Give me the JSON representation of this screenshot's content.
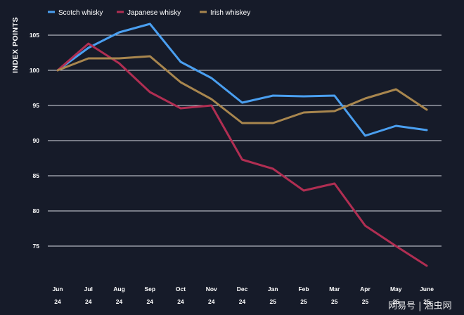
{
  "chart_data": {
    "type": "line",
    "ylabel": "INDEX POINTS",
    "ylim": [
      70,
      108
    ],
    "yticks": [
      75,
      80,
      85,
      90,
      95,
      100,
      105
    ],
    "grid": true,
    "legend_placement": "top-left",
    "categories": [
      [
        "Jun",
        "24"
      ],
      [
        "Jul",
        "24"
      ],
      [
        "Aug",
        "24"
      ],
      [
        "Sep",
        "24"
      ],
      [
        "Oct",
        "24"
      ],
      [
        "Nov",
        "24"
      ],
      [
        "Dec",
        "24"
      ],
      [
        "Jan",
        "25"
      ],
      [
        "Feb",
        "25"
      ],
      [
        "Mar",
        "25"
      ],
      [
        "Apr",
        "25"
      ],
      [
        "May",
        "25"
      ],
      [
        "June",
        "25"
      ]
    ],
    "series": [
      {
        "name": "Scotch whisky",
        "color": "#4a9ff0",
        "values": [
          100,
          103.2,
          105.4,
          106.6,
          101.2,
          98.9,
          95.4,
          96.4,
          96.3,
          96.4,
          90.7,
          92.1,
          91.5
        ]
      },
      {
        "name": "Japanese whisky",
        "color": "#b02e52",
        "values": [
          100,
          103.8,
          101.0,
          96.9,
          94.6,
          95.0,
          87.3,
          86.0,
          82.9,
          83.9,
          77.9,
          75.0,
          72.2
        ]
      },
      {
        "name": "Irish whiskey",
        "color": "#a8864e",
        "values": [
          100,
          101.7,
          101.7,
          102.0,
          98.3,
          95.9,
          92.5,
          92.5,
          94.0,
          94.2,
          96.0,
          97.3,
          94.4
        ]
      }
    ]
  },
  "watermark": "网易号 | 酒虫网"
}
